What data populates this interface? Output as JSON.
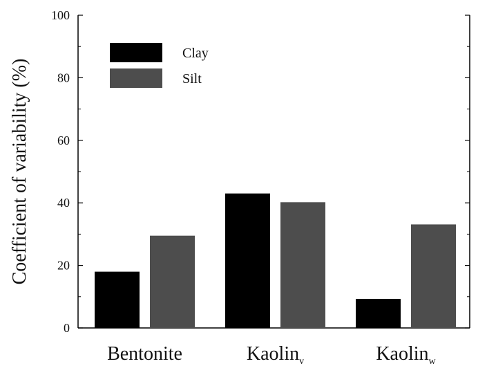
{
  "chart_data": {
    "type": "bar",
    "categories": [
      {
        "main": "Bentonite",
        "sub": ""
      },
      {
        "main": "Kaolin",
        "sub": "v"
      },
      {
        "main": "Kaolin",
        "sub": "w"
      }
    ],
    "series": [
      {
        "name": "Clay",
        "values": [
          18,
          43,
          9.3
        ],
        "color": "#000000"
      },
      {
        "name": "Silt",
        "values": [
          29.5,
          40.2,
          33.1
        ],
        "color": "#4d4d4d"
      }
    ],
    "ylabel": "Coefficient of variability (%)",
    "xlabel": "",
    "ylim": [
      0,
      100
    ],
    "yticks": [
      0,
      20,
      40,
      60,
      80,
      100
    ],
    "legend_position": "top-left",
    "grid": false
  }
}
